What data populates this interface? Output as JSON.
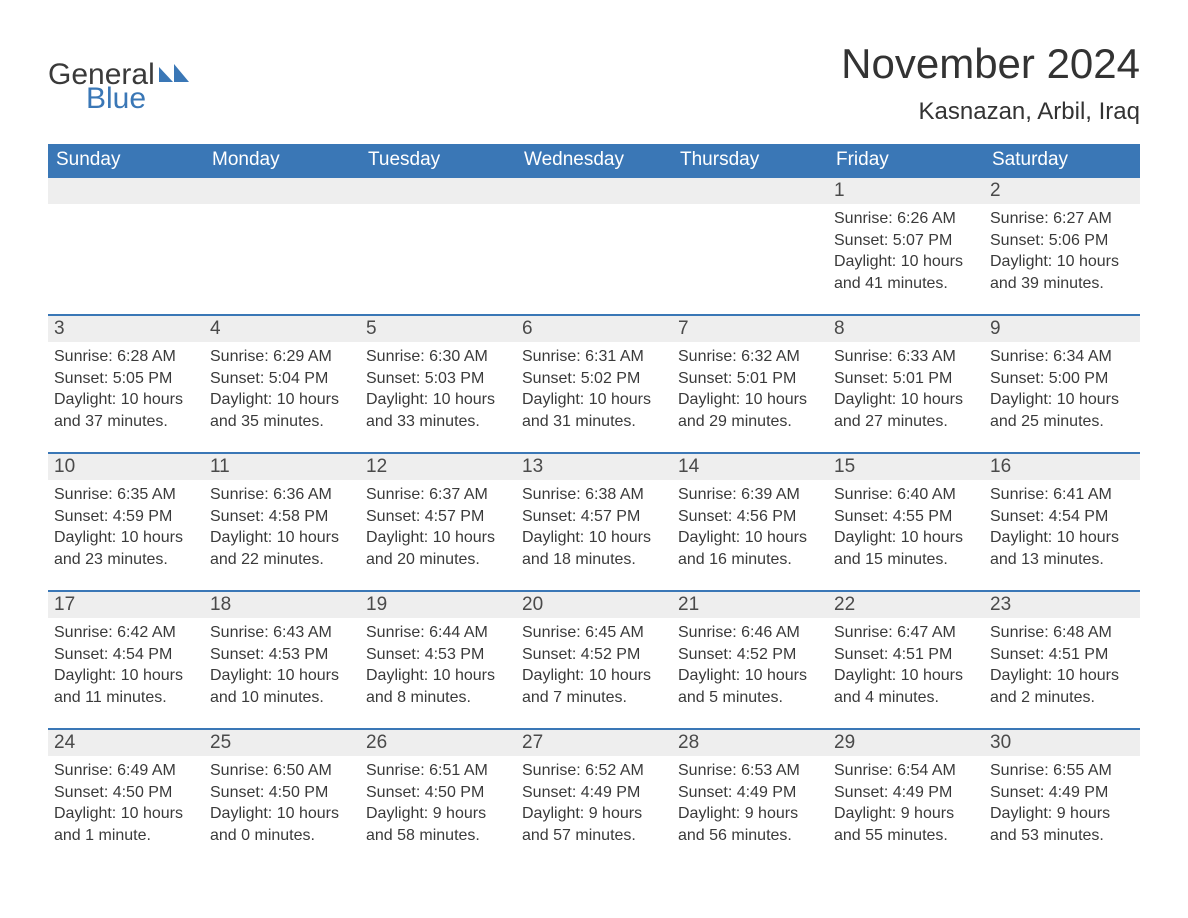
{
  "brand": {
    "word1": "General",
    "word2": "Blue",
    "icon_color": "#3a77b6"
  },
  "header": {
    "title": "November 2024",
    "location": "Kasnazan, Arbil, Iraq",
    "title_fontsize": 42,
    "location_fontsize": 24,
    "text_color": "#333333"
  },
  "calendar": {
    "type": "table",
    "header_bg": "#3a77b6",
    "header_text_color": "#ffffff",
    "daynum_bg": "#eeeeee",
    "daynum_border_top": "#3a77b6",
    "body_text_color": "#3a3a3a",
    "background_color": "#ffffff",
    "columns": [
      "Sunday",
      "Monday",
      "Tuesday",
      "Wednesday",
      "Thursday",
      "Friday",
      "Saturday"
    ],
    "weeks": [
      [
        null,
        null,
        null,
        null,
        null,
        {
          "n": "1",
          "sunrise": "6:26 AM",
          "sunset": "5:07 PM",
          "daylight": "10 hours and 41 minutes."
        },
        {
          "n": "2",
          "sunrise": "6:27 AM",
          "sunset": "5:06 PM",
          "daylight": "10 hours and 39 minutes."
        }
      ],
      [
        {
          "n": "3",
          "sunrise": "6:28 AM",
          "sunset": "5:05 PM",
          "daylight": "10 hours and 37 minutes."
        },
        {
          "n": "4",
          "sunrise": "6:29 AM",
          "sunset": "5:04 PM",
          "daylight": "10 hours and 35 minutes."
        },
        {
          "n": "5",
          "sunrise": "6:30 AM",
          "sunset": "5:03 PM",
          "daylight": "10 hours and 33 minutes."
        },
        {
          "n": "6",
          "sunrise": "6:31 AM",
          "sunset": "5:02 PM",
          "daylight": "10 hours and 31 minutes."
        },
        {
          "n": "7",
          "sunrise": "6:32 AM",
          "sunset": "5:01 PM",
          "daylight": "10 hours and 29 minutes."
        },
        {
          "n": "8",
          "sunrise": "6:33 AM",
          "sunset": "5:01 PM",
          "daylight": "10 hours and 27 minutes."
        },
        {
          "n": "9",
          "sunrise": "6:34 AM",
          "sunset": "5:00 PM",
          "daylight": "10 hours and 25 minutes."
        }
      ],
      [
        {
          "n": "10",
          "sunrise": "6:35 AM",
          "sunset": "4:59 PM",
          "daylight": "10 hours and 23 minutes."
        },
        {
          "n": "11",
          "sunrise": "6:36 AM",
          "sunset": "4:58 PM",
          "daylight": "10 hours and 22 minutes."
        },
        {
          "n": "12",
          "sunrise": "6:37 AM",
          "sunset": "4:57 PM",
          "daylight": "10 hours and 20 minutes."
        },
        {
          "n": "13",
          "sunrise": "6:38 AM",
          "sunset": "4:57 PM",
          "daylight": "10 hours and 18 minutes."
        },
        {
          "n": "14",
          "sunrise": "6:39 AM",
          "sunset": "4:56 PM",
          "daylight": "10 hours and 16 minutes."
        },
        {
          "n": "15",
          "sunrise": "6:40 AM",
          "sunset": "4:55 PM",
          "daylight": "10 hours and 15 minutes."
        },
        {
          "n": "16",
          "sunrise": "6:41 AM",
          "sunset": "4:54 PM",
          "daylight": "10 hours and 13 minutes."
        }
      ],
      [
        {
          "n": "17",
          "sunrise": "6:42 AM",
          "sunset": "4:54 PM",
          "daylight": "10 hours and 11 minutes."
        },
        {
          "n": "18",
          "sunrise": "6:43 AM",
          "sunset": "4:53 PM",
          "daylight": "10 hours and 10 minutes."
        },
        {
          "n": "19",
          "sunrise": "6:44 AM",
          "sunset": "4:53 PM",
          "daylight": "10 hours and 8 minutes."
        },
        {
          "n": "20",
          "sunrise": "6:45 AM",
          "sunset": "4:52 PM",
          "daylight": "10 hours and 7 minutes."
        },
        {
          "n": "21",
          "sunrise": "6:46 AM",
          "sunset": "4:52 PM",
          "daylight": "10 hours and 5 minutes."
        },
        {
          "n": "22",
          "sunrise": "6:47 AM",
          "sunset": "4:51 PM",
          "daylight": "10 hours and 4 minutes."
        },
        {
          "n": "23",
          "sunrise": "6:48 AM",
          "sunset": "4:51 PM",
          "daylight": "10 hours and 2 minutes."
        }
      ],
      [
        {
          "n": "24",
          "sunrise": "6:49 AM",
          "sunset": "4:50 PM",
          "daylight": "10 hours and 1 minute."
        },
        {
          "n": "25",
          "sunrise": "6:50 AM",
          "sunset": "4:50 PM",
          "daylight": "10 hours and 0 minutes."
        },
        {
          "n": "26",
          "sunrise": "6:51 AM",
          "sunset": "4:50 PM",
          "daylight": "9 hours and 58 minutes."
        },
        {
          "n": "27",
          "sunrise": "6:52 AM",
          "sunset": "4:49 PM",
          "daylight": "9 hours and 57 minutes."
        },
        {
          "n": "28",
          "sunrise": "6:53 AM",
          "sunset": "4:49 PM",
          "daylight": "9 hours and 56 minutes."
        },
        {
          "n": "29",
          "sunrise": "6:54 AM",
          "sunset": "4:49 PM",
          "daylight": "9 hours and 55 minutes."
        },
        {
          "n": "30",
          "sunrise": "6:55 AM",
          "sunset": "4:49 PM",
          "daylight": "9 hours and 53 minutes."
        }
      ]
    ],
    "labels": {
      "sunrise": "Sunrise: ",
      "sunset": "Sunset: ",
      "daylight": "Daylight: "
    }
  }
}
